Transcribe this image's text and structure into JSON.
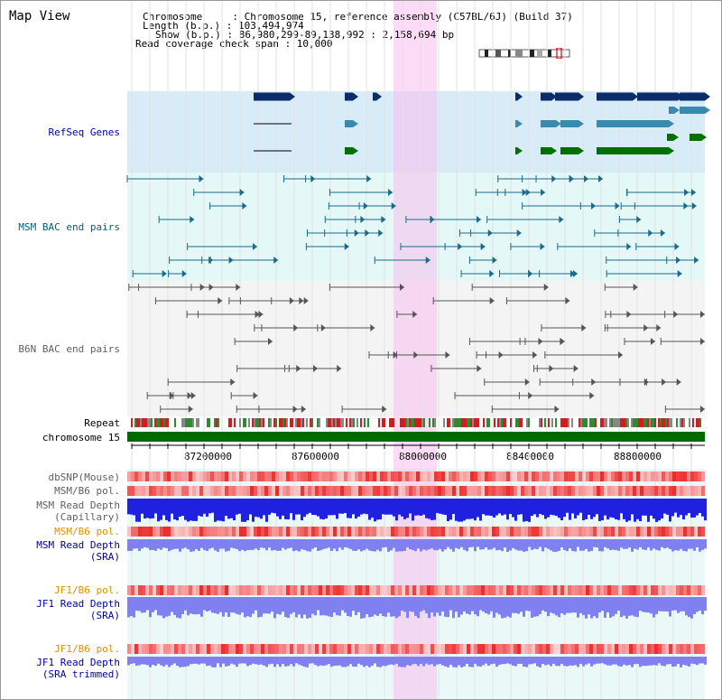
{
  "title": "Map View",
  "info": {
    "line1": "Chromosome     : Chromosome 15, reference assembly (C57BL/6J) (Build 37)",
    "line2": "Length (b.p.) : 103,494,974",
    "line3": "Show (b.p.) : 86,980,299-89,138,992 : 2,158,694 bp",
    "line4": "Read coverage check span : 10,000"
  },
  "tracks": {
    "refseq": "RefSeq Genes",
    "msm_bac": "MSM BAC end pairs",
    "b6n_bac": "B6N BAC end pairs",
    "repeat": "Repeat",
    "chromosome": "chromosome 15",
    "dbsnp": "dbSNP(Mouse)",
    "msm_b6_pol_1": "MSM/B6 pol.",
    "msm_read_depth_cap_1": "MSM Read Depth",
    "msm_read_depth_cap_2": "(Capillary)",
    "msm_b6_pol_2": "MSM/B6 pol.",
    "msm_read_depth_sra_1": "MSM Read Depth",
    "msm_read_depth_sra_2": "(SRA)",
    "jf1_b6_pol_1": "JF1/B6 pol.",
    "jf1_read_depth_sra_1": "JF1 Read Depth",
    "jf1_read_depth_sra_2": "(SRA)",
    "jf1_b6_pol_2": "JF1/B6 pol.",
    "jf1_read_depth_trim_1": "JF1 Read Depth",
    "jf1_read_depth_trim_2": "(SRA trimmed)"
  },
  "axis": {
    "ticks": [
      "87200000",
      "87600000",
      "88000000",
      "88400000",
      "88800000"
    ]
  },
  "colors": {
    "refseq_bg": "#d8ecf8",
    "msm_bg": "#e4f8f8",
    "b6n_bg": "#f4f4f4",
    "highlight": "#f8d4f0",
    "chromosome_bar": "#006a00",
    "msm_line": "#1a6a8a",
    "b6n_line": "#555555",
    "gene_dark": "#0a2d6a",
    "gene_mid": "#3a8ab0",
    "gene_green": "#007000",
    "depth_blue": "#2020e0",
    "depth_light": "#8080f0",
    "pol_red": "#f04040"
  }
}
